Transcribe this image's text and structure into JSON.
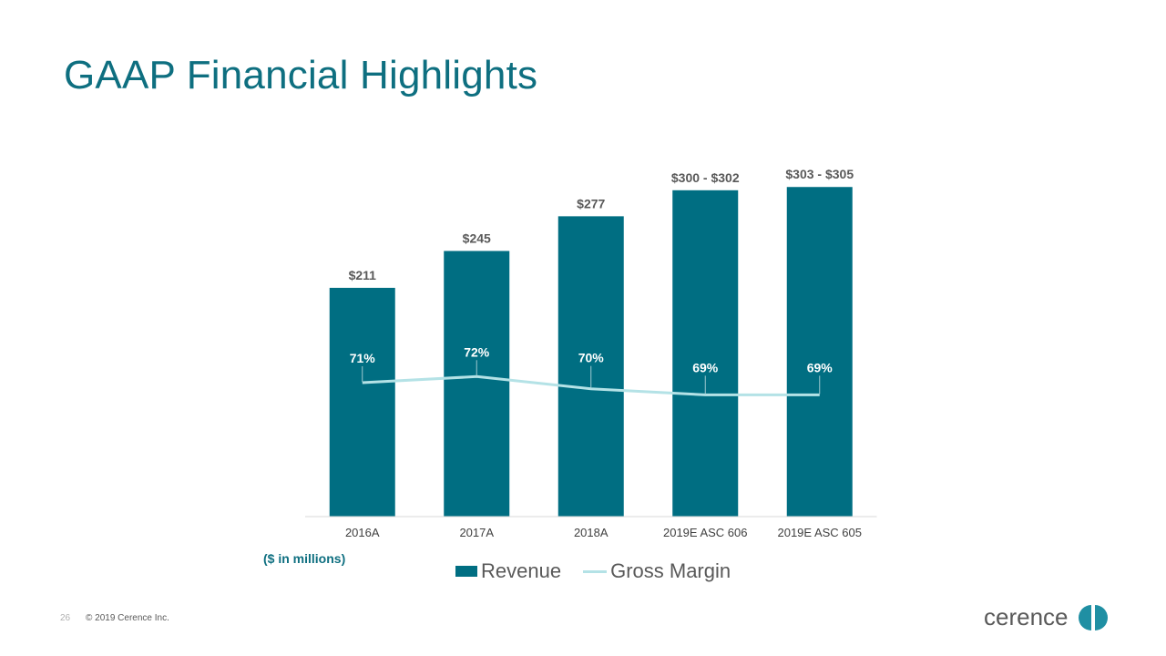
{
  "slide": {
    "title": "GAAP Financial Highlights",
    "units_note": "($ in millions)",
    "page_number": "26",
    "copyright": "© 2019 Cerence Inc.",
    "logo_text": "cerence"
  },
  "colors": {
    "title": "#0e6f80",
    "revenue_bar": "#006e82",
    "gross_margin_line": "#b4e2e6",
    "label_text": "#595959"
  },
  "chart_data": {
    "type": "bar",
    "title": "",
    "categories": [
      "2016A",
      "2017A",
      "2018A",
      "2019E ASC 606",
      "2019E ASC 605"
    ],
    "series": [
      {
        "name": "Revenue",
        "type": "bar",
        "values": [
          211,
          245,
          277,
          301,
          304
        ],
        "labels": [
          "$211",
          "$245",
          "$277",
          "$300 - $302",
          "$303 - $305"
        ]
      },
      {
        "name": "Gross Margin",
        "type": "line",
        "values": [
          71,
          72,
          70,
          69,
          69
        ],
        "labels": [
          "71%",
          "72%",
          "70%",
          "69%",
          "69%"
        ]
      }
    ],
    "ylim_revenue": [
      0,
      320
    ],
    "legend_position": "bottom",
    "grid": false
  }
}
